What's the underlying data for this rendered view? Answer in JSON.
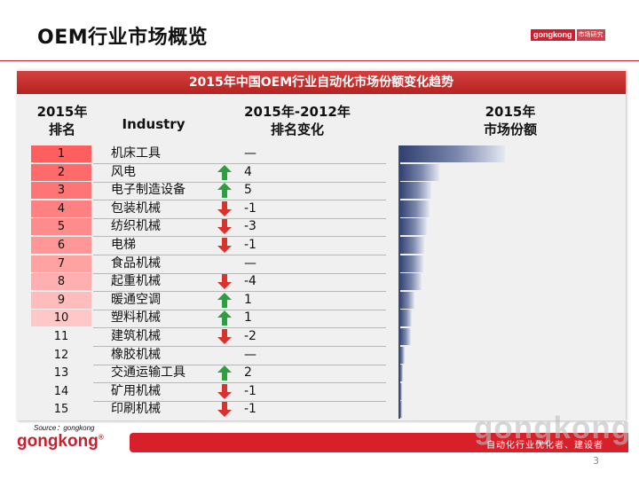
{
  "title": "OEM行业市场概览",
  "logo": {
    "brand": "gongkong",
    "sub": "市场研究"
  },
  "banner": "2015年中国OEM行业自动化市场份额变化趋势",
  "headers": {
    "rank": "2015年\n排名",
    "industry": "Industry",
    "change": "2015年-2012年\n排名变化",
    "share": "2015年\n市场份额"
  },
  "rows": [
    {
      "rank": "1",
      "industry": "机床工具",
      "change": "—",
      "dir": "none",
      "share_level": 0.85,
      "rank_shade": 1.0
    },
    {
      "rank": "2",
      "industry": "风电",
      "change": "4",
      "dir": "up",
      "share_level": 0.32,
      "rank_shade": 0.93
    },
    {
      "rank": "3",
      "industry": "电子制造设备",
      "change": "5",
      "dir": "up",
      "share_level": 0.26,
      "rank_shade": 0.86
    },
    {
      "rank": "4",
      "industry": "包装机械",
      "change": "-1",
      "dir": "down",
      "share_level": 0.24,
      "rank_shade": 0.79
    },
    {
      "rank": "5",
      "industry": "纺织机械",
      "change": "-3",
      "dir": "down",
      "share_level": 0.22,
      "rank_shade": 0.72
    },
    {
      "rank": "6",
      "industry": "电梯",
      "change": "-1",
      "dir": "down",
      "share_level": 0.2,
      "rank_shade": 0.65
    },
    {
      "rank": "7",
      "industry": "食品机械",
      "change": "—",
      "dir": "none",
      "share_level": 0.19,
      "rank_shade": 0.58
    },
    {
      "rank": "8",
      "industry": "起重机械",
      "change": "-4",
      "dir": "down",
      "share_level": 0.18,
      "rank_shade": 0.5
    },
    {
      "rank": "9",
      "industry": "暖通空调",
      "change": "1",
      "dir": "up",
      "share_level": 0.12,
      "rank_shade": 0.42
    },
    {
      "rank": "10",
      "industry": "塑料机械",
      "change": "1",
      "dir": "up",
      "share_level": 0.1,
      "rank_shade": 0.35
    },
    {
      "rank": "11",
      "industry": "建筑机械",
      "change": "-2",
      "dir": "down",
      "share_level": 0.09,
      "rank_shade": 0.0
    },
    {
      "rank": "12",
      "industry": "橡胶机械",
      "change": "—",
      "dir": "none",
      "share_level": 0.04,
      "rank_shade": 0.0
    },
    {
      "rank": "13",
      "industry": "交通运输工具",
      "change": "2",
      "dir": "up",
      "share_level": 0.03,
      "rank_shade": 0.0
    },
    {
      "rank": "14",
      "industry": "矿用机械",
      "change": "-1",
      "dir": "down",
      "share_level": 0.02,
      "rank_shade": 0.0
    },
    {
      "rank": "15",
      "industry": "印刷机械",
      "change": "-1",
      "dir": "down",
      "share_level": 0.02,
      "rank_shade": 0.0
    }
  ],
  "source": "Source：gongkong",
  "footer_logo": "gongkong",
  "footer_logo_mark": "®",
  "watermark": "gongkong",
  "slogan": "自动化行业优化者、建设者",
  "page_number": "3",
  "colors": {
    "accent": "#c8202f",
    "bar": "#3a4a78",
    "up_arrow": "#2e9e3e",
    "down_arrow": "#d9332e"
  }
}
